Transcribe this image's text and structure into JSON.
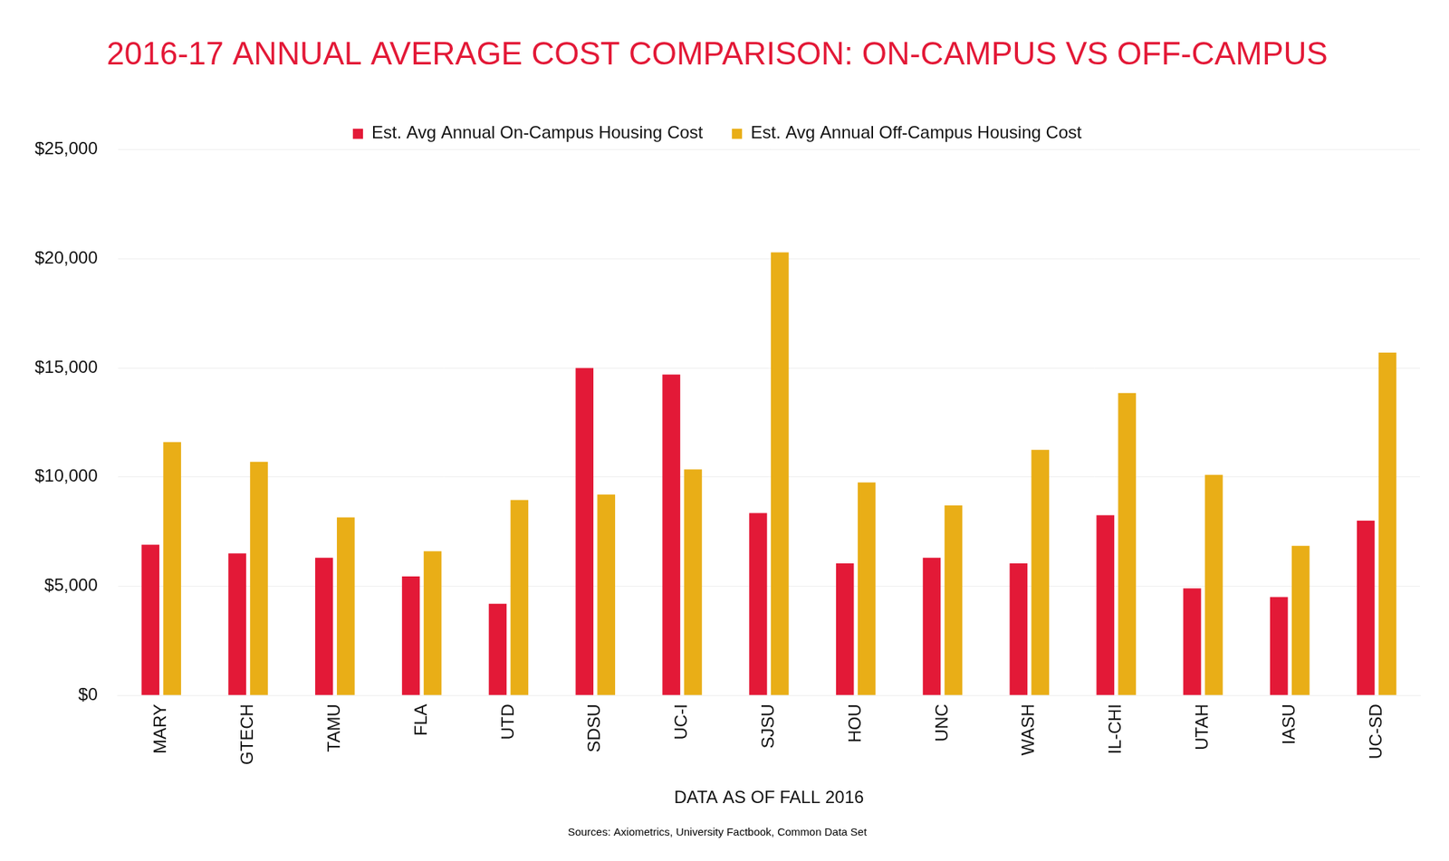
{
  "chart_data": {
    "type": "bar",
    "title": "2016-17 ANNUAL AVERAGE COST COMPARISON: ON-CAMPUS VS OFF-CAMPUS",
    "x_label": "DATA AS OF FALL 2016",
    "annotations": [
      "Sources: Axiometrics, University Factbook, Common Data Set"
    ],
    "categories": [
      "MARY",
      "GTECH",
      "TAMU",
      "FLA",
      "UTD",
      "SDSU",
      "UC-I",
      "SJSU",
      "HOU",
      "UNC",
      "WASH",
      "IL-CHI",
      "UTAH",
      "IASU",
      "UC-SD"
    ],
    "series": [
      {
        "name": "Est. Avg Annual On-Campus Housing Cost",
        "color": "#e31937",
        "values": [
          6900,
          6500,
          6300,
          5450,
          4200,
          15000,
          14700,
          8350,
          6050,
          6300,
          6050,
          8250,
          4900,
          4500,
          8000
        ]
      },
      {
        "name": "Est. Avg Annual Off-Campus Housing Cost",
        "color": "#e9ae17",
        "values": [
          11600,
          10700,
          8150,
          6600,
          8950,
          9200,
          10350,
          20300,
          9750,
          8700,
          11250,
          13850,
          10100,
          6850,
          15700
        ]
      }
    ],
    "ylim": [
      0,
      25000
    ],
    "yticks": [
      {
        "value": 0,
        "label": "$0"
      },
      {
        "value": 5000,
        "label": "$5,000"
      },
      {
        "value": 10000,
        "label": "$10,000"
      },
      {
        "value": 15000,
        "label": "$15,000"
      },
      {
        "value": 20000,
        "label": "$20,000"
      },
      {
        "value": 25000,
        "label": "$25,000"
      }
    ],
    "grid": true,
    "legend": "top"
  }
}
